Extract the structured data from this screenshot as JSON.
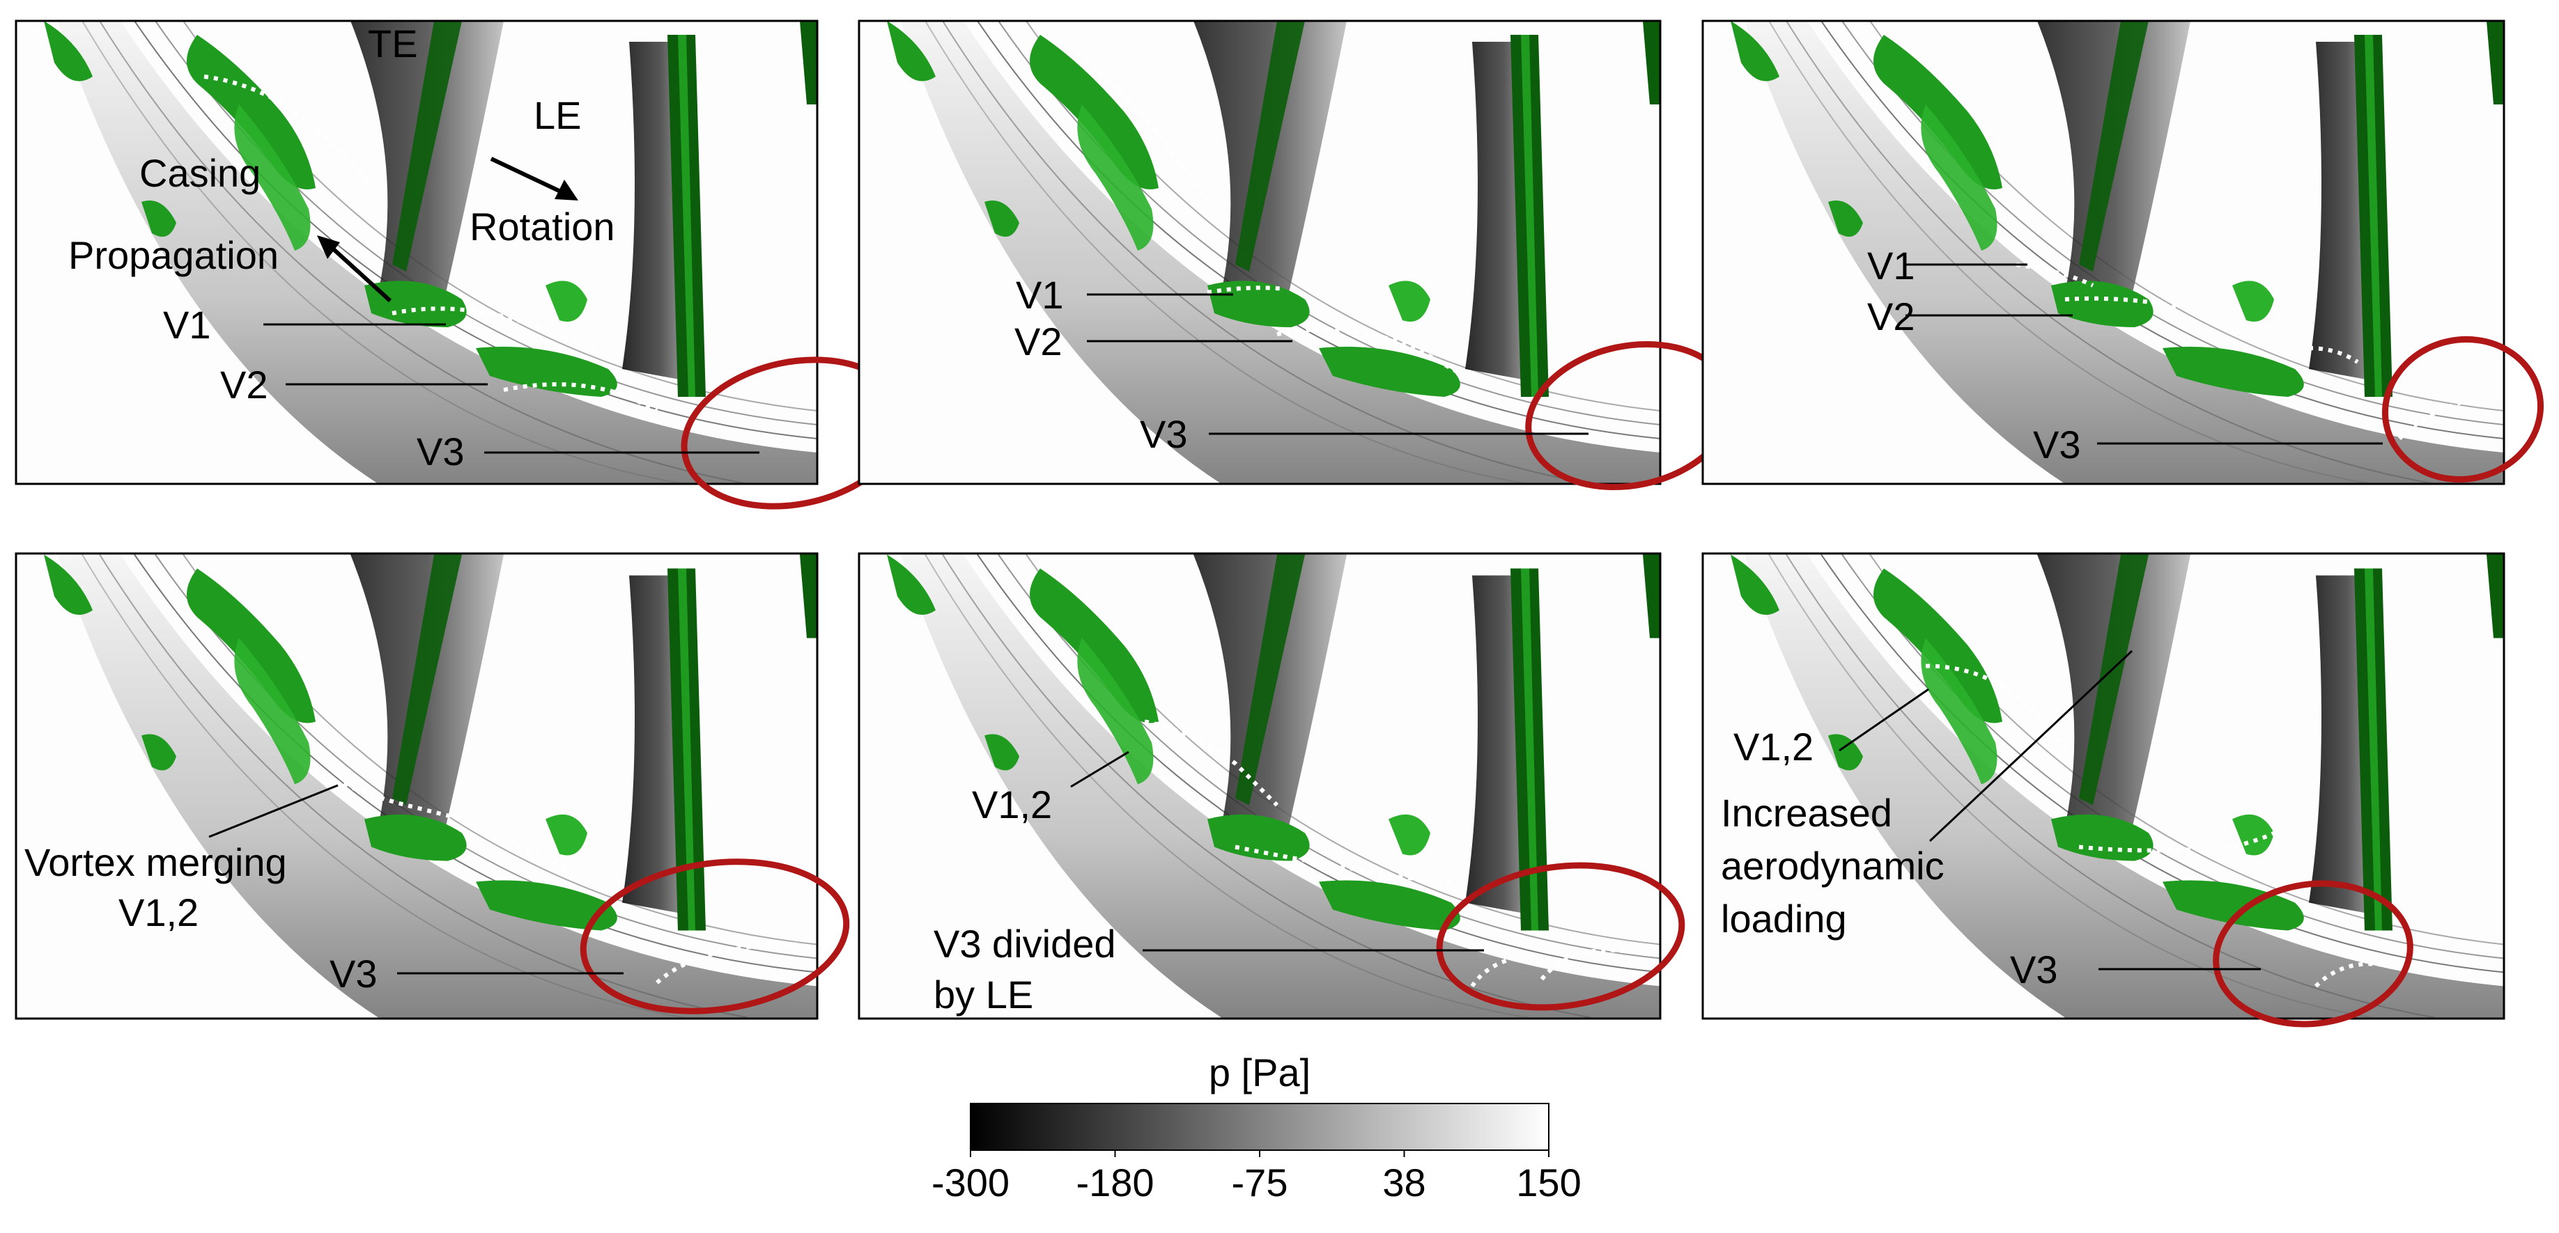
{
  "colors": {
    "vortex_green": "#1f9c1f",
    "vortex_dark_green": "#0b5d0b",
    "highlight_circle": "#b01616",
    "blade_dark": "#2a2a2a",
    "frame": "#000000"
  },
  "panels": [
    {
      "id": "p1",
      "labels": {
        "te": "TE",
        "le": "LE",
        "casing": "Casing",
        "rotation": "Rotation",
        "propagation": "Propagation",
        "v1": "V1",
        "v2": "V2",
        "v3": "V3"
      }
    },
    {
      "id": "p2",
      "labels": {
        "v1": "V1",
        "v2": "V2",
        "v3": "V3"
      }
    },
    {
      "id": "p3",
      "labels": {
        "v1": "V1",
        "v2": "V2",
        "v3": "V3"
      }
    },
    {
      "id": "p4",
      "labels": {
        "merge_line1": "Vortex merging",
        "merge_line2": "V1,2",
        "v3": "V3"
      }
    },
    {
      "id": "p5",
      "labels": {
        "v12": "V1,2",
        "div_line1": "V3 divided",
        "div_line2": "by LE"
      }
    },
    {
      "id": "p6",
      "labels": {
        "v12": "V1,2",
        "inc_line1": "Increased",
        "inc_line2": "aerodynamic",
        "inc_line3": "loading",
        "v3": "V3"
      }
    }
  ],
  "colorbar": {
    "title": "p [Pa]",
    "min": -300,
    "max": 150,
    "ticks": [
      "-300",
      "-180",
      "-75",
      "38",
      "150"
    ],
    "colormap": "grayscale (black to white)"
  }
}
